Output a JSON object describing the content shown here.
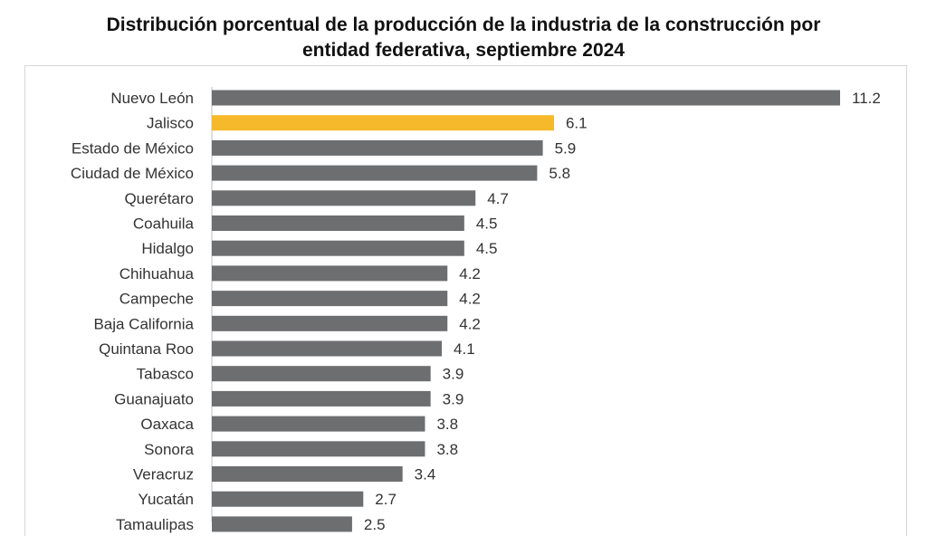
{
  "chart_data": {
    "type": "bar",
    "orientation": "horizontal",
    "title_line1": "Distribución porcentual de la producción de la industria de la construcción por",
    "title_line2": "entidad federativa, septiembre 2024",
    "categories": [
      "Nuevo León",
      "Jalisco",
      "Estado de México",
      "Ciudad de México",
      "Querétaro",
      "Coahuila",
      "Hidalgo",
      "Chihuahua",
      "Campeche",
      "Baja California",
      "Quintana Roo",
      "Tabasco",
      "Guanajuato",
      "Oaxaca",
      "Sonora",
      "Veracruz",
      "Yucatán",
      "Tamaulipas"
    ],
    "value_labels": [
      "11.2",
      "6.1",
      "5.9",
      "5.8",
      "4.7",
      "4.5",
      "4.5",
      "4.2",
      "4.2",
      "4.2",
      "4.1",
      "3.9",
      "3.9",
      "3.8",
      "3.8",
      "3.4",
      "2.7",
      "2.5"
    ],
    "values": [
      11.2,
      6.1,
      5.9,
      5.8,
      4.7,
      4.5,
      4.5,
      4.2,
      4.2,
      4.2,
      4.1,
      3.9,
      3.9,
      3.8,
      3.8,
      3.4,
      2.7,
      2.5
    ],
    "highlight_category": "Jalisco",
    "bar_color": "#6d6e70",
    "highlight_color": "#f6b92b",
    "xlim": [
      0,
      11.2
    ],
    "grid": false,
    "xlabel": "",
    "ylabel": ""
  }
}
